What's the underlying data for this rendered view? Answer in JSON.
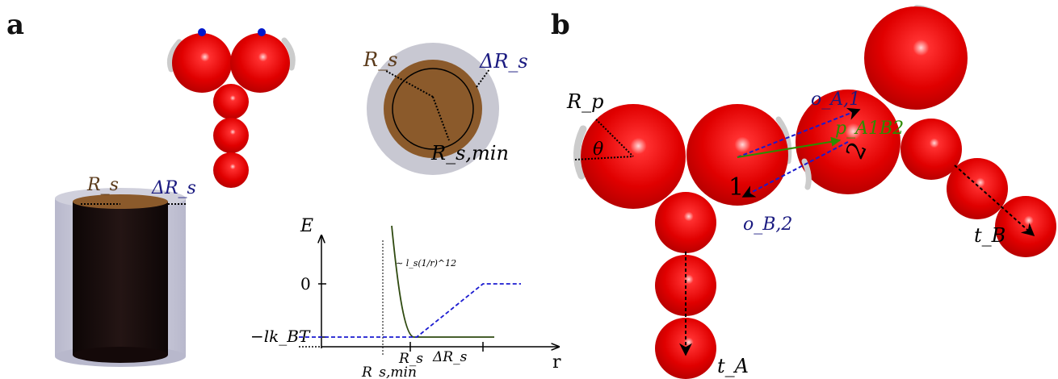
{
  "panel_a": {
    "letter": "a",
    "cylinder": {
      "r_label": "R_s",
      "dr_label": "ΔR_s"
    },
    "circle": {
      "r_label": "R_s",
      "dr_label": "ΔR_s",
      "rmin_label": "R_s,min"
    },
    "potential_plot": {
      "y_axis_label": "E",
      "x_axis_label": "r",
      "y_ticks": [
        "0",
        "−lk_BT"
      ],
      "x_ticks": [
        "R_s",
        "ΔR_s",
        "R_s,min"
      ],
      "curve_annotation": "∼ l_s(1/r)^12"
    }
  },
  "panel_b": {
    "letter": "b",
    "labels": {
      "rp": "R_p",
      "theta": "θ",
      "oA1": "o_A,1",
      "pA1B2": "p_A1B2",
      "oB2": "o_B,2",
      "num1": "1",
      "num2": "2",
      "tA": "t_A",
      "tB": "t_B"
    }
  },
  "colors": {
    "bead": "#e50000",
    "core": "#8b5a2b",
    "shell": "#c8c8d2",
    "blue_dashed": "#1a1ad0",
    "green": "#2e8b00",
    "curve": "#2f4a10",
    "label_brown": "#5a3a1a",
    "label_blue": "#1a1a80"
  }
}
